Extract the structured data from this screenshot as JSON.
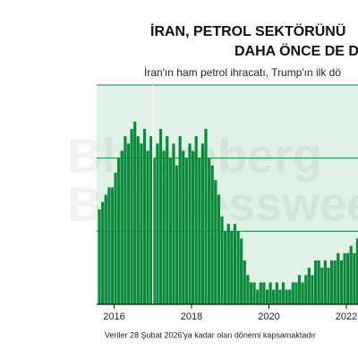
{
  "chart_data": {
    "type": "bar",
    "title_lines": [
      "İRAN, PETROL SEKTÖRÜNÜ",
      "DAHA ÖNCE DE D"
    ],
    "subtitle": "İran'ın ham petrol ihracatı, Trump'ın ilk dö",
    "footnote": "Veriler 28 Şubat 2026'ya kadar olan dönemi kapsamaktadır",
    "watermark": [
      "Bloomberg",
      "Businessweek"
    ],
    "color": "#0b8a3c",
    "x": [
      2015.583,
      2015.667,
      2015.75,
      2015.833,
      2015.917,
      2016,
      2016.083,
      2016.167,
      2016.25,
      2016.333,
      2016.417,
      2016.5,
      2016.583,
      2016.667,
      2016.75,
      2016.833,
      2016.917,
      2017,
      2017.083,
      2017.167,
      2017.25,
      2017.333,
      2017.417,
      2017.5,
      2017.583,
      2017.667,
      2017.75,
      2017.833,
      2017.917,
      2018,
      2018.083,
      2018.167,
      2018.25,
      2018.333,
      2018.417,
      2018.5,
      2018.583,
      2018.667,
      2018.75,
      2018.833,
      2018.917,
      2019,
      2019.083,
      2019.167,
      2019.25,
      2019.333,
      2019.417,
      2019.5,
      2019.583,
      2019.667,
      2019.75,
      2019.833,
      2019.917,
      2020,
      2020.083,
      2020.167,
      2020.25,
      2020.333,
      2020.417,
      2020.5,
      2020.583,
      2020.667,
      2020.75,
      2020.833,
      2020.917,
      2021,
      2021.083,
      2021.167,
      2021.25,
      2021.333,
      2021.417,
      2021.5,
      2021.583,
      2021.667,
      2021.75,
      2021.833,
      2021.917,
      2022,
      2022.083,
      2022.167,
      2022.25
    ],
    "values": [
      1.3,
      1.4,
      1.5,
      1.6,
      1.6,
      1.8,
      2.0,
      2.1,
      2.3,
      2.2,
      2.4,
      2.5,
      2.3,
      2.2,
      2.4,
      2.1,
      2.3,
      2.0,
      2.2,
      2.4,
      2.1,
      2.3,
      2.0,
      2.2,
      1.9,
      2.3,
      2.1,
      2.0,
      2.2,
      2.1,
      2.3,
      2.0,
      2.2,
      2.4,
      2.0,
      1.9,
      1.7,
      1.5,
      1.2,
      1.0,
      1.1,
      1.0,
      1.1,
      1.0,
      0.9,
      0.6,
      0.4,
      0.3,
      0.3,
      0.2,
      0.3,
      0.3,
      0.2,
      0.3,
      0.2,
      0.3,
      0.2,
      0.3,
      0.2,
      0.2,
      0.3,
      0.3,
      0.4,
      0.3,
      0.4,
      0.5,
      0.4,
      0.6,
      0.6,
      0.5,
      0.6,
      0.5,
      0.6,
      0.6,
      0.7,
      0.6,
      0.7,
      0.7,
      0.8,
      0.7,
      0.9
    ],
    "xlim": [
      2015.55,
      2022.3
    ],
    "xticks": [
      2016,
      2018,
      2020,
      2022
    ],
    "ylim": [
      0,
      3
    ],
    "yticks": [
      0,
      1,
      2,
      3
    ],
    "grid": true,
    "reference_lines": [
      2017
    ]
  }
}
